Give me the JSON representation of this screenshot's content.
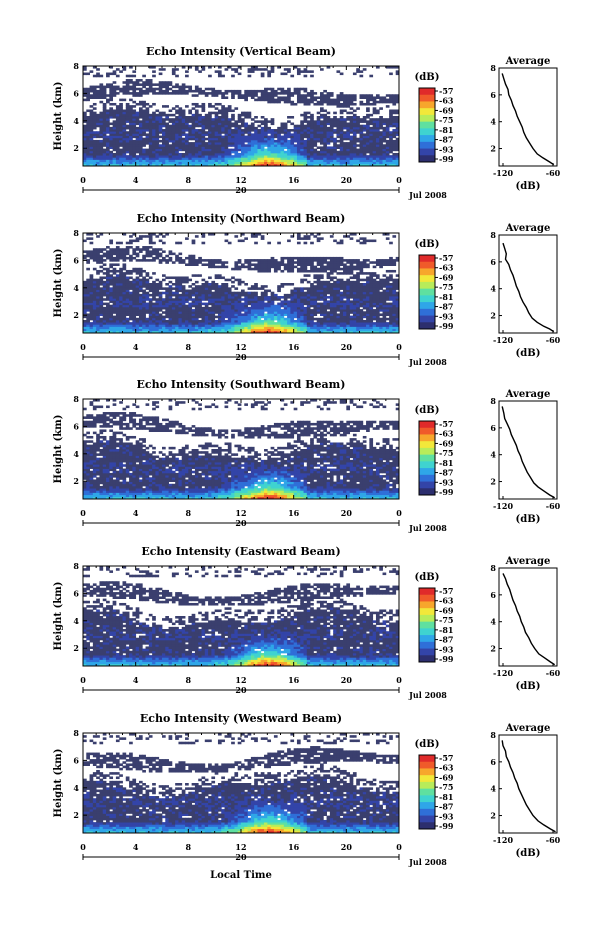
{
  "figure": {
    "xlabel": "Local Time",
    "date_label": "Jul 2008",
    "day_label": "20"
  },
  "chart_data": [
    {
      "type": "heatmap",
      "title": "Echo Intensity (Vertical Beam)",
      "ylabel": "Height (km)",
      "xticks": [
        "0",
        "4",
        "8",
        "12",
        "16",
        "20",
        "0"
      ],
      "xlim": [
        0,
        24
      ],
      "yticks": [
        "2",
        "4",
        "6",
        "8"
      ],
      "ylim": [
        0.7,
        8
      ],
      "colorbar": {
        "unit": "(dB)",
        "ticks": [
          "-57",
          "-63",
          "-69",
          "-75",
          "-81",
          "-87",
          "-93",
          "-99"
        ]
      },
      "average": {
        "title": "Average",
        "xlabel": "(dB)",
        "xticks": [
          "-120",
          "-60"
        ],
        "yticks": [
          "2",
          "4",
          "6",
          "8"
        ],
        "profile": [
          [
            -121,
            7.6
          ],
          [
            -119,
            7.2
          ],
          [
            -117,
            6.8
          ],
          [
            -114,
            6.4
          ],
          [
            -113,
            6.0
          ],
          [
            -110,
            5.6
          ],
          [
            -108,
            5.2
          ],
          [
            -105,
            4.8
          ],
          [
            -103,
            4.4
          ],
          [
            -100,
            4.0
          ],
          [
            -97,
            3.6
          ],
          [
            -95,
            3.2
          ],
          [
            -92,
            2.8
          ],
          [
            -88,
            2.4
          ],
          [
            -84,
            2.0
          ],
          [
            -79,
            1.6
          ],
          [
            -72,
            1.3
          ],
          [
            -64,
            1.0
          ],
          [
            -59,
            0.8
          ]
        ]
      }
    },
    {
      "type": "heatmap",
      "title": "Echo Intensity (Northward Beam)",
      "ylabel": "Height (km)",
      "xticks": [
        "0",
        "4",
        "8",
        "12",
        "16",
        "20",
        "0"
      ],
      "xlim": [
        0,
        24
      ],
      "yticks": [
        "2",
        "4",
        "6",
        "8"
      ],
      "ylim": [
        0.7,
        8
      ],
      "colorbar": {
        "unit": "(dB)",
        "ticks": [
          "-57",
          "-63",
          "-69",
          "-75",
          "-81",
          "-87",
          "-93",
          "-99"
        ]
      },
      "average": {
        "title": "Average",
        "xlabel": "(dB)",
        "xticks": [
          "-120",
          "-60"
        ],
        "yticks": [
          "2",
          "4",
          "6",
          "8"
        ],
        "profile": [
          [
            -120,
            7.4
          ],
          [
            -118,
            7.0
          ],
          [
            -116,
            6.6
          ],
          [
            -117,
            6.2
          ],
          [
            -113,
            5.8
          ],
          [
            -111,
            5.4
          ],
          [
            -108,
            5.0
          ],
          [
            -106,
            4.6
          ],
          [
            -104,
            4.2
          ],
          [
            -101,
            3.8
          ],
          [
            -99,
            3.4
          ],
          [
            -96,
            3.0
          ],
          [
            -92,
            2.6
          ],
          [
            -89,
            2.2
          ],
          [
            -85,
            1.8
          ],
          [
            -79,
            1.5
          ],
          [
            -71,
            1.2
          ],
          [
            -64,
            1.0
          ],
          [
            -59,
            0.8
          ]
        ]
      }
    },
    {
      "type": "heatmap",
      "title": "Echo Intensity (Southward Beam)",
      "ylabel": "Height (km)",
      "xticks": [
        "0",
        "4",
        "8",
        "12",
        "16",
        "20",
        "0"
      ],
      "xlim": [
        0,
        24
      ],
      "yticks": [
        "2",
        "4",
        "6",
        "8"
      ],
      "ylim": [
        0.7,
        8
      ],
      "colorbar": {
        "unit": "(dB)",
        "ticks": [
          "-57",
          "-63",
          "-69",
          "-75",
          "-81",
          "-87",
          "-93",
          "-99"
        ]
      },
      "average": {
        "title": "Average",
        "xlabel": "(dB)",
        "xticks": [
          "-120",
          "-60"
        ],
        "yticks": [
          "2",
          "4",
          "6",
          "8"
        ],
        "profile": [
          [
            -121,
            7.6
          ],
          [
            -119,
            7.1
          ],
          [
            -118,
            6.7
          ],
          [
            -115,
            6.3
          ],
          [
            -112,
            5.9
          ],
          [
            -110,
            5.5
          ],
          [
            -107,
            5.1
          ],
          [
            -104,
            4.7
          ],
          [
            -102,
            4.3
          ],
          [
            -99,
            3.9
          ],
          [
            -97,
            3.5
          ],
          [
            -94,
            3.1
          ],
          [
            -91,
            2.7
          ],
          [
            -87,
            2.3
          ],
          [
            -83,
            1.9
          ],
          [
            -78,
            1.6
          ],
          [
            -71,
            1.3
          ],
          [
            -64,
            1.0
          ],
          [
            -58,
            0.8
          ]
        ]
      }
    },
    {
      "type": "heatmap",
      "title": "Echo Intensity (Eastward Beam)",
      "ylabel": "Height (km)",
      "xticks": [
        "0",
        "4",
        "8",
        "12",
        "16",
        "20",
        "0"
      ],
      "xlim": [
        0,
        24
      ],
      "yticks": [
        "2",
        "4",
        "6",
        "8"
      ],
      "ylim": [
        0.7,
        8
      ],
      "colorbar": {
        "unit": "(dB)",
        "ticks": [
          "-57",
          "-63",
          "-69",
          "-75",
          "-81",
          "-87",
          "-93",
          "-99"
        ]
      },
      "average": {
        "title": "Average",
        "xlabel": "(dB)",
        "xticks": [
          "-120",
          "-60"
        ],
        "yticks": [
          "2",
          "4",
          "6",
          "8"
        ],
        "profile": [
          [
            -120,
            7.6
          ],
          [
            -117,
            7.2
          ],
          [
            -115,
            6.8
          ],
          [
            -112,
            6.4
          ],
          [
            -110,
            6.0
          ],
          [
            -108,
            5.6
          ],
          [
            -105,
            5.2
          ],
          [
            -103,
            4.8
          ],
          [
            -100,
            4.4
          ],
          [
            -98,
            4.0
          ],
          [
            -95,
            3.6
          ],
          [
            -93,
            3.2
          ],
          [
            -89,
            2.8
          ],
          [
            -86,
            2.4
          ],
          [
            -82,
            2.0
          ],
          [
            -77,
            1.6
          ],
          [
            -70,
            1.3
          ],
          [
            -63,
            1.0
          ],
          [
            -58,
            0.8
          ]
        ]
      }
    },
    {
      "type": "heatmap",
      "title": "Echo Intensity (Westward Beam)",
      "ylabel": "Height (km)",
      "xticks": [
        "0",
        "4",
        "8",
        "12",
        "16",
        "20",
        "0"
      ],
      "xlim": [
        0,
        24
      ],
      "yticks": [
        "2",
        "4",
        "6",
        "8"
      ],
      "ylim": [
        0.7,
        8
      ],
      "colorbar": {
        "unit": "(dB)",
        "ticks": [
          "-57",
          "-63",
          "-69",
          "-75",
          "-81",
          "-87",
          "-93",
          "-99"
        ]
      },
      "average": {
        "title": "Average",
        "xlabel": "(dB)",
        "xticks": [
          "-120",
          "-60"
        ],
        "yticks": [
          "2",
          "4",
          "6",
          "8"
        ],
        "profile": [
          [
            -121,
            7.6
          ],
          [
            -120,
            7.2
          ],
          [
            -117,
            6.8
          ],
          [
            -116,
            6.4
          ],
          [
            -113,
            6.0
          ],
          [
            -111,
            5.6
          ],
          [
            -108,
            5.2
          ],
          [
            -106,
            4.8
          ],
          [
            -103,
            4.4
          ],
          [
            -101,
            4.0
          ],
          [
            -98,
            3.6
          ],
          [
            -95,
            3.2
          ],
          [
            -92,
            2.8
          ],
          [
            -88,
            2.4
          ],
          [
            -84,
            2.0
          ],
          [
            -78,
            1.6
          ],
          [
            -71,
            1.3
          ],
          [
            -63,
            1.0
          ],
          [
            -57,
            0.8
          ]
        ]
      }
    }
  ],
  "colors": {
    "background": "#ffffff",
    "axis": "#000000",
    "noise_floor": "#3a3f6e",
    "colormap": [
      "#2c2e6e",
      "#3344a8",
      "#2f6fd8",
      "#2fa6e8",
      "#3fd3d0",
      "#5fe0a0",
      "#b8ec5a",
      "#f2e83a",
      "#f7a62c",
      "#f05a2a",
      "#e02a2a"
    ]
  }
}
